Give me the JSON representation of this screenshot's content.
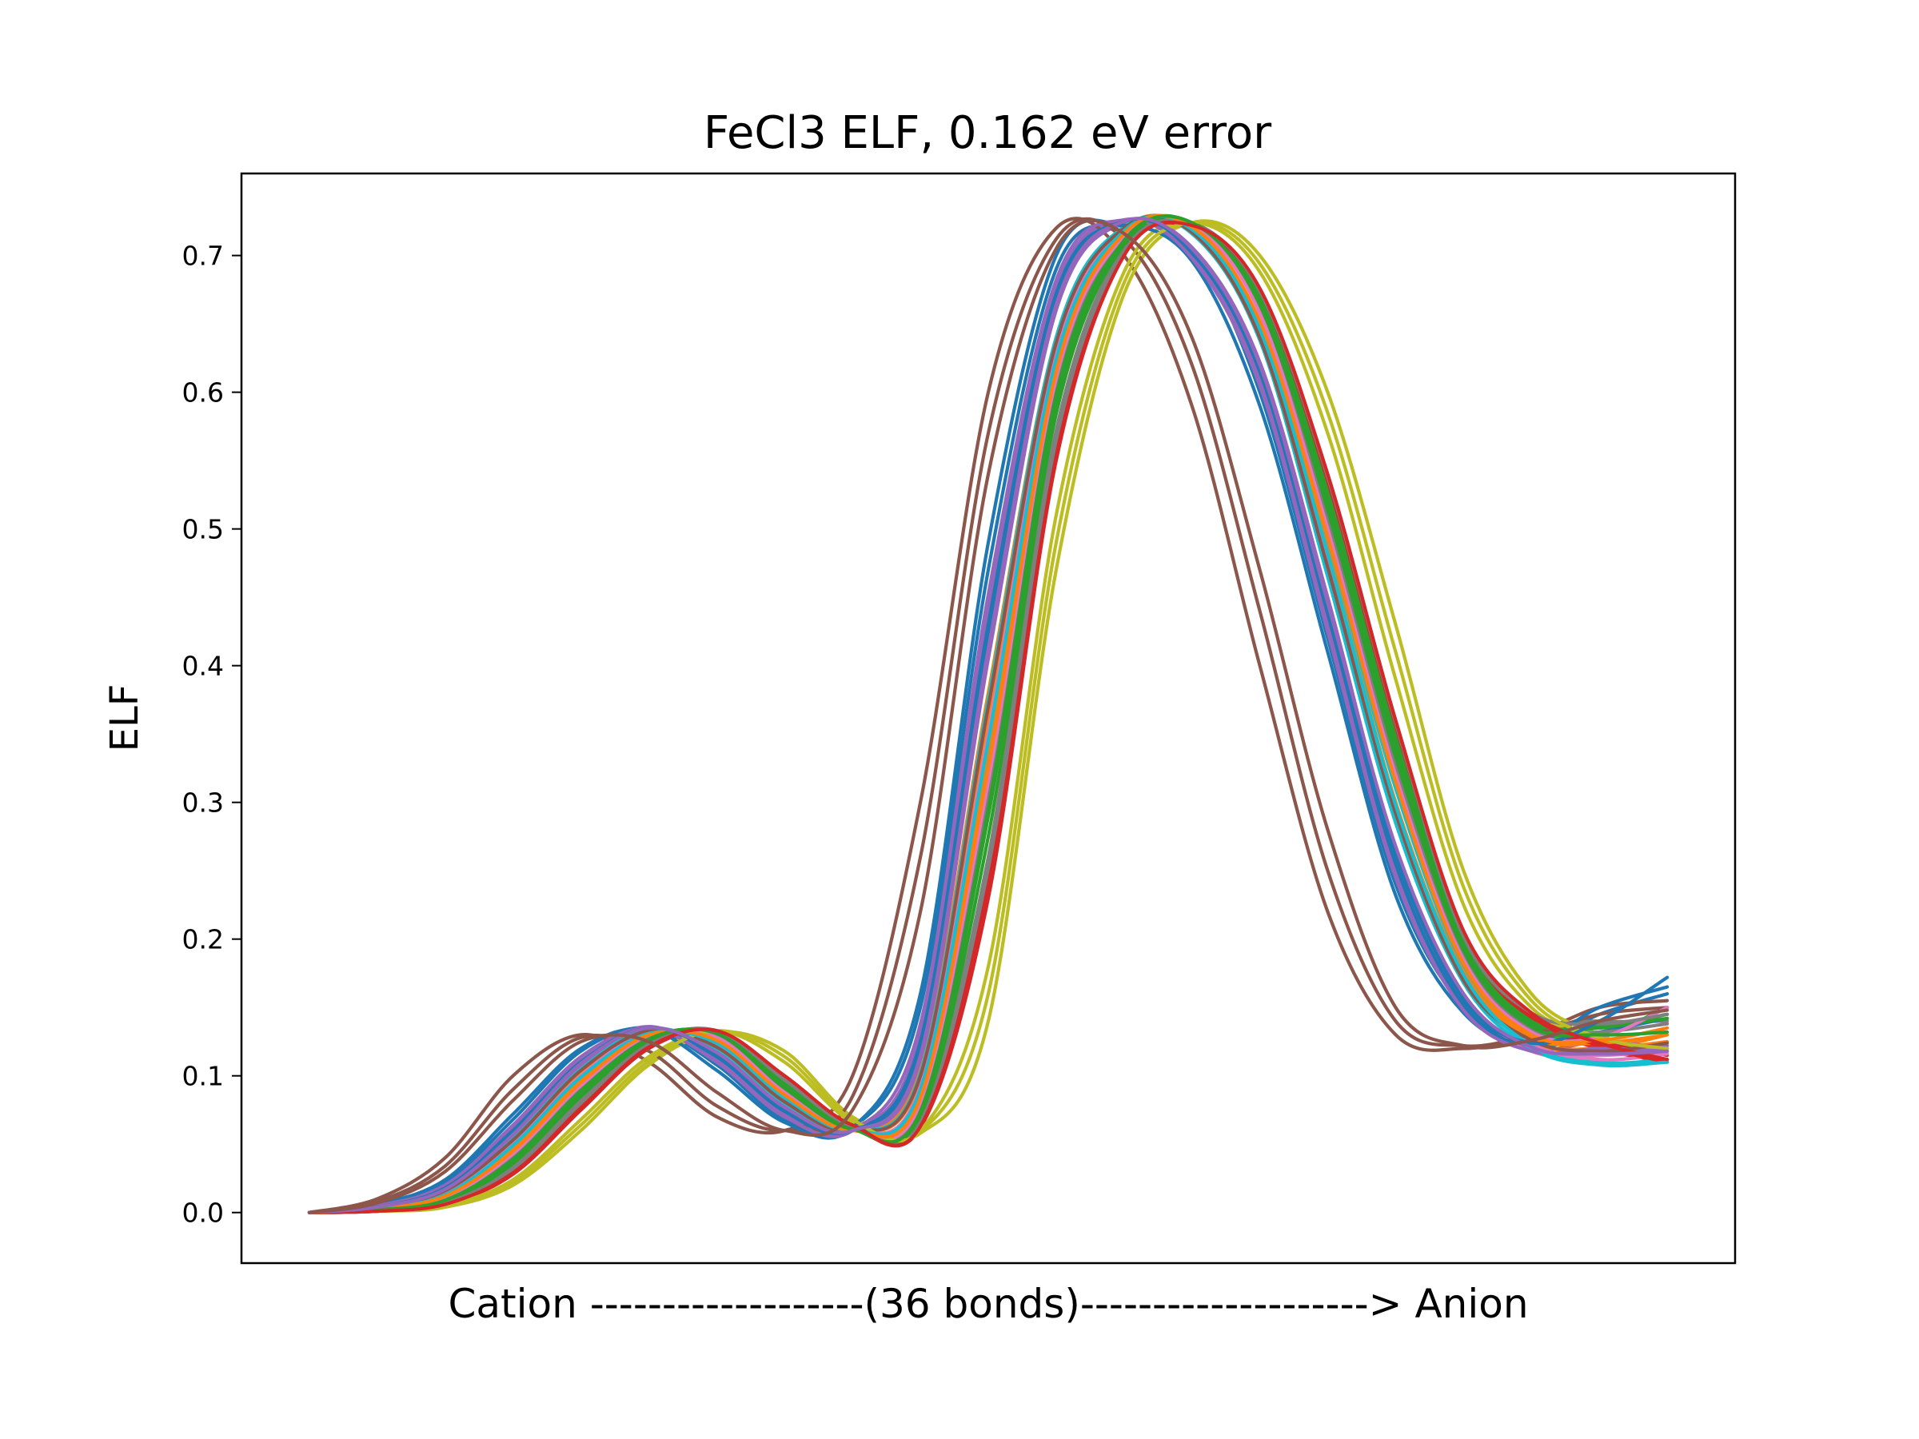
{
  "chart_data": {
    "type": "line",
    "title": "FeCl3 ELF, 0.162 eV error",
    "xlabel": "Cation -------------------(36 bonds)--------------------> Anion",
    "ylabel": "ELF",
    "ylim": [
      -0.037,
      0.76
    ],
    "xlim": [
      -0.05,
      1.05
    ],
    "yticks": [
      "0.0",
      "0.1",
      "0.2",
      "0.3",
      "0.4",
      "0.5",
      "0.6",
      "0.7"
    ],
    "grid": false,
    "legend": "none",
    "series_count": 36,
    "x": [
      0,
      0.05,
      0.1,
      0.15,
      0.2,
      0.25,
      0.3,
      0.35,
      0.4,
      0.45,
      0.5,
      0.55,
      0.6,
      0.65,
      0.7,
      0.75,
      0.8,
      0.85,
      0.9,
      0.95,
      1.0
    ],
    "colors": [
      "#1f77b4",
      "#ff7f0e",
      "#2ca02c",
      "#d62728",
      "#9467bd",
      "#8c564b",
      "#e377c2",
      "#7f7f7f",
      "#bcbd22",
      "#17becf"
    ],
    "series": [
      {
        "values": [
          0.0,
          0.006,
          0.022,
          0.068,
          0.118,
          0.135,
          0.108,
          0.068,
          0.062,
          0.15,
          0.47,
          0.69,
          0.722,
          0.705,
          0.6,
          0.42,
          0.24,
          0.15,
          0.122,
          0.145,
          0.16
        ]
      },
      {
        "values": [
          0.0,
          0.004,
          0.016,
          0.055,
          0.106,
          0.134,
          0.12,
          0.08,
          0.06,
          0.105,
          0.38,
          0.64,
          0.72,
          0.718,
          0.645,
          0.48,
          0.3,
          0.175,
          0.125,
          0.12,
          0.13
        ]
      },
      {
        "values": [
          0.0,
          0.003,
          0.01,
          0.04,
          0.09,
          0.128,
          0.13,
          0.09,
          0.062,
          0.075,
          0.3,
          0.6,
          0.712,
          0.724,
          0.665,
          0.51,
          0.33,
          0.19,
          0.135,
          0.13,
          0.15
        ]
      },
      {
        "values": [
          0.0,
          0.001,
          0.006,
          0.028,
          0.075,
          0.12,
          0.133,
          0.1,
          0.064,
          0.062,
          0.23,
          0.55,
          0.7,
          0.722,
          0.67,
          0.52,
          0.34,
          0.195,
          0.14,
          0.12,
          0.11
        ]
      },
      {
        "values": [
          0.0,
          0.005,
          0.02,
          0.062,
          0.112,
          0.136,
          0.112,
          0.072,
          0.06,
          0.13,
          0.44,
          0.676,
          0.726,
          0.7,
          0.61,
          0.43,
          0.25,
          0.15,
          0.12,
          0.125,
          0.12
        ]
      },
      {
        "values": [
          0.0,
          0.01,
          0.04,
          0.1,
          0.13,
          0.11,
          0.07,
          0.06,
          0.1,
          0.3,
          0.6,
          0.72,
          0.7,
          0.59,
          0.4,
          0.22,
          0.13,
          0.12,
          0.13,
          0.15,
          0.155
        ]
      },
      {
        "values": [
          0.0,
          0.004,
          0.018,
          0.058,
          0.11,
          0.135,
          0.116,
          0.076,
          0.06,
          0.118,
          0.42,
          0.668,
          0.725,
          0.704,
          0.618,
          0.44,
          0.26,
          0.155,
          0.118,
          0.115,
          0.118
        ]
      },
      {
        "values": [
          0.0,
          0.002,
          0.008,
          0.034,
          0.082,
          0.124,
          0.133,
          0.096,
          0.062,
          0.068,
          0.26,
          0.572,
          0.706,
          0.724,
          0.674,
          0.54,
          0.36,
          0.205,
          0.145,
          0.14,
          0.14
        ]
      },
      {
        "values": [
          0.0,
          0.001,
          0.004,
          0.02,
          0.06,
          0.108,
          0.132,
          0.118,
          0.07,
          0.058,
          0.14,
          0.47,
          0.672,
          0.724,
          0.7,
          0.6,
          0.43,
          0.25,
          0.16,
          0.13,
          0.115
        ]
      },
      {
        "values": [
          0.0,
          0.003,
          0.012,
          0.046,
          0.096,
          0.13,
          0.126,
          0.086,
          0.06,
          0.085,
          0.33,
          0.62,
          0.716,
          0.72,
          0.65,
          0.49,
          0.31,
          0.18,
          0.125,
          0.11,
          0.112
        ]
      },
      {
        "values": [
          0.0,
          0.005,
          0.019,
          0.06,
          0.11,
          0.134,
          0.114,
          0.074,
          0.06,
          0.125,
          0.43,
          0.672,
          0.724,
          0.702,
          0.615,
          0.438,
          0.255,
          0.152,
          0.122,
          0.132,
          0.142
        ]
      },
      {
        "values": [
          0.0,
          0.004,
          0.015,
          0.052,
          0.103,
          0.133,
          0.121,
          0.082,
          0.06,
          0.098,
          0.36,
          0.632,
          0.72,
          0.718,
          0.64,
          0.47,
          0.29,
          0.17,
          0.125,
          0.12,
          0.125
        ]
      },
      {
        "values": [
          0.0,
          0.002,
          0.009,
          0.038,
          0.088,
          0.127,
          0.131,
          0.092,
          0.061,
          0.072,
          0.29,
          0.592,
          0.71,
          0.724,
          0.668,
          0.52,
          0.34,
          0.196,
          0.138,
          0.135,
          0.145
        ]
      },
      {
        "values": [
          0.0,
          0.001,
          0.007,
          0.03,
          0.078,
          0.122,
          0.133,
          0.098,
          0.063,
          0.064,
          0.245,
          0.56,
          0.702,
          0.722,
          0.672,
          0.53,
          0.35,
          0.2,
          0.142,
          0.125,
          0.115
        ]
      },
      {
        "values": [
          0.0,
          0.004,
          0.017,
          0.056,
          0.108,
          0.135,
          0.118,
          0.078,
          0.06,
          0.112,
          0.405,
          0.66,
          0.724,
          0.706,
          0.622,
          0.45,
          0.265,
          0.158,
          0.12,
          0.118,
          0.122
        ]
      },
      {
        "values": [
          0.0,
          0.008,
          0.034,
          0.09,
          0.128,
          0.118,
          0.078,
          0.06,
          0.085,
          0.26,
          0.57,
          0.712,
          0.712,
          0.62,
          0.44,
          0.25,
          0.14,
          0.122,
          0.13,
          0.145,
          0.15
        ]
      },
      {
        "values": [
          0.0,
          0.003,
          0.014,
          0.05,
          0.1,
          0.132,
          0.123,
          0.084,
          0.06,
          0.092,
          0.35,
          0.628,
          0.718,
          0.719,
          0.645,
          0.478,
          0.295,
          0.172,
          0.124,
          0.112,
          0.116
        ]
      },
      {
        "values": [
          0.0,
          0.002,
          0.01,
          0.04,
          0.09,
          0.128,
          0.13,
          0.09,
          0.062,
          0.076,
          0.305,
          0.604,
          0.712,
          0.723,
          0.662,
          0.505,
          0.325,
          0.188,
          0.134,
          0.132,
          0.138
        ]
      },
      {
        "values": [
          0.0,
          0.001,
          0.005,
          0.024,
          0.068,
          0.114,
          0.133,
          0.11,
          0.066,
          0.06,
          0.18,
          0.51,
          0.688,
          0.724,
          0.688,
          0.57,
          0.39,
          0.225,
          0.15,
          0.128,
          0.118
        ]
      },
      {
        "values": [
          0.0,
          0.004,
          0.016,
          0.054,
          0.105,
          0.134,
          0.12,
          0.08,
          0.06,
          0.102,
          0.375,
          0.64,
          0.721,
          0.716,
          0.638,
          0.465,
          0.285,
          0.168,
          0.12,
          0.108,
          0.112
        ]
      },
      {
        "values": [
          0.0,
          0.006,
          0.024,
          0.072,
          0.12,
          0.134,
          0.104,
          0.066,
          0.062,
          0.16,
          0.49,
          0.7,
          0.722,
          0.696,
          0.59,
          0.41,
          0.232,
          0.146,
          0.124,
          0.15,
          0.165
        ]
      },
      {
        "values": [
          0.0,
          0.003,
          0.013,
          0.048,
          0.098,
          0.131,
          0.124,
          0.085,
          0.06,
          0.088,
          0.34,
          0.622,
          0.717,
          0.72,
          0.648,
          0.484,
          0.3,
          0.176,
          0.128,
          0.124,
          0.13
        ]
      },
      {
        "values": [
          0.0,
          0.002,
          0.008,
          0.036,
          0.085,
          0.125,
          0.132,
          0.094,
          0.062,
          0.07,
          0.275,
          0.584,
          0.708,
          0.724,
          0.67,
          0.528,
          0.348,
          0.198,
          0.14,
          0.136,
          0.142
        ]
      },
      {
        "values": [
          0.0,
          0.001,
          0.006,
          0.03,
          0.078,
          0.121,
          0.133,
          0.099,
          0.063,
          0.064,
          0.24,
          0.556,
          0.701,
          0.721,
          0.674,
          0.535,
          0.356,
          0.204,
          0.144,
          0.122,
          0.11
        ]
      },
      {
        "values": [
          0.0,
          0.005,
          0.02,
          0.064,
          0.114,
          0.135,
          0.11,
          0.07,
          0.06,
          0.138,
          0.452,
          0.682,
          0.726,
          0.698,
          0.605,
          0.425,
          0.245,
          0.148,
          0.118,
          0.12,
          0.118
        ]
      },
      {
        "values": [
          0.0,
          0.004,
          0.016,
          0.053,
          0.104,
          0.133,
          0.121,
          0.081,
          0.06,
          0.1,
          0.37,
          0.636,
          0.72,
          0.717,
          0.64,
          0.472,
          0.292,
          0.17,
          0.126,
          0.118,
          0.124
        ]
      },
      {
        "values": [
          0.0,
          0.003,
          0.011,
          0.043,
          0.093,
          0.129,
          0.128,
          0.088,
          0.061,
          0.08,
          0.315,
          0.61,
          0.714,
          0.722,
          0.658,
          0.5,
          0.32,
          0.185,
          0.132,
          0.128,
          0.15
        ]
      },
      {
        "values": [
          0.0,
          0.001,
          0.007,
          0.032,
          0.08,
          0.123,
          0.133,
          0.097,
          0.063,
          0.066,
          0.252,
          0.565,
          0.703,
          0.723,
          0.674,
          0.538,
          0.358,
          0.202,
          0.146,
          0.138,
          0.145
        ]
      },
      {
        "values": [
          0.0,
          0.001,
          0.004,
          0.022,
          0.064,
          0.111,
          0.133,
          0.114,
          0.068,
          0.059,
          0.16,
          0.49,
          0.68,
          0.724,
          0.694,
          0.585,
          0.41,
          0.238,
          0.155,
          0.128,
          0.12
        ]
      },
      {
        "values": [
          0.0,
          0.003,
          0.013,
          0.049,
          0.099,
          0.131,
          0.124,
          0.084,
          0.06,
          0.09,
          0.345,
          0.624,
          0.718,
          0.719,
          0.646,
          0.482,
          0.298,
          0.174,
          0.122,
          0.108,
          0.11
        ]
      },
      {
        "values": [
          0.0,
          0.004,
          0.018,
          0.059,
          0.11,
          0.135,
          0.116,
          0.075,
          0.06,
          0.12,
          0.422,
          0.668,
          0.725,
          0.703,
          0.616,
          0.442,
          0.262,
          0.156,
          0.124,
          0.14,
          0.172
        ]
      },
      {
        "values": [
          0.0,
          0.003,
          0.012,
          0.045,
          0.095,
          0.13,
          0.126,
          0.086,
          0.06,
          0.084,
          0.325,
          0.615,
          0.716,
          0.721,
          0.652,
          0.494,
          0.315,
          0.182,
          0.13,
          0.126,
          0.135
        ]
      },
      {
        "values": [
          0.0,
          0.002,
          0.009,
          0.039,
          0.089,
          0.127,
          0.131,
          0.091,
          0.061,
          0.074,
          0.295,
          0.598,
          0.711,
          0.724,
          0.664,
          0.515,
          0.335,
          0.192,
          0.136,
          0.13,
          0.132
        ]
      },
      {
        "values": [
          0.0,
          0.001,
          0.006,
          0.029,
          0.076,
          0.121,
          0.133,
          0.1,
          0.064,
          0.063,
          0.236,
          0.552,
          0.7,
          0.722,
          0.676,
          0.54,
          0.36,
          0.206,
          0.146,
          0.124,
          0.112
        ]
      },
      {
        "values": [
          0.0,
          0.004,
          0.017,
          0.057,
          0.109,
          0.135,
          0.117,
          0.077,
          0.06,
          0.115,
          0.412,
          0.664,
          0.725,
          0.705,
          0.62,
          0.446,
          0.268,
          0.16,
          0.121,
          0.116,
          0.118
        ]
      },
      {
        "values": [
          0.0,
          0.007,
          0.03,
          0.082,
          0.125,
          0.125,
          0.088,
          0.06,
          0.075,
          0.22,
          0.54,
          0.705,
          0.716,
          0.64,
          0.47,
          0.28,
          0.15,
          0.122,
          0.126,
          0.14,
          0.148
        ]
      }
    ]
  }
}
